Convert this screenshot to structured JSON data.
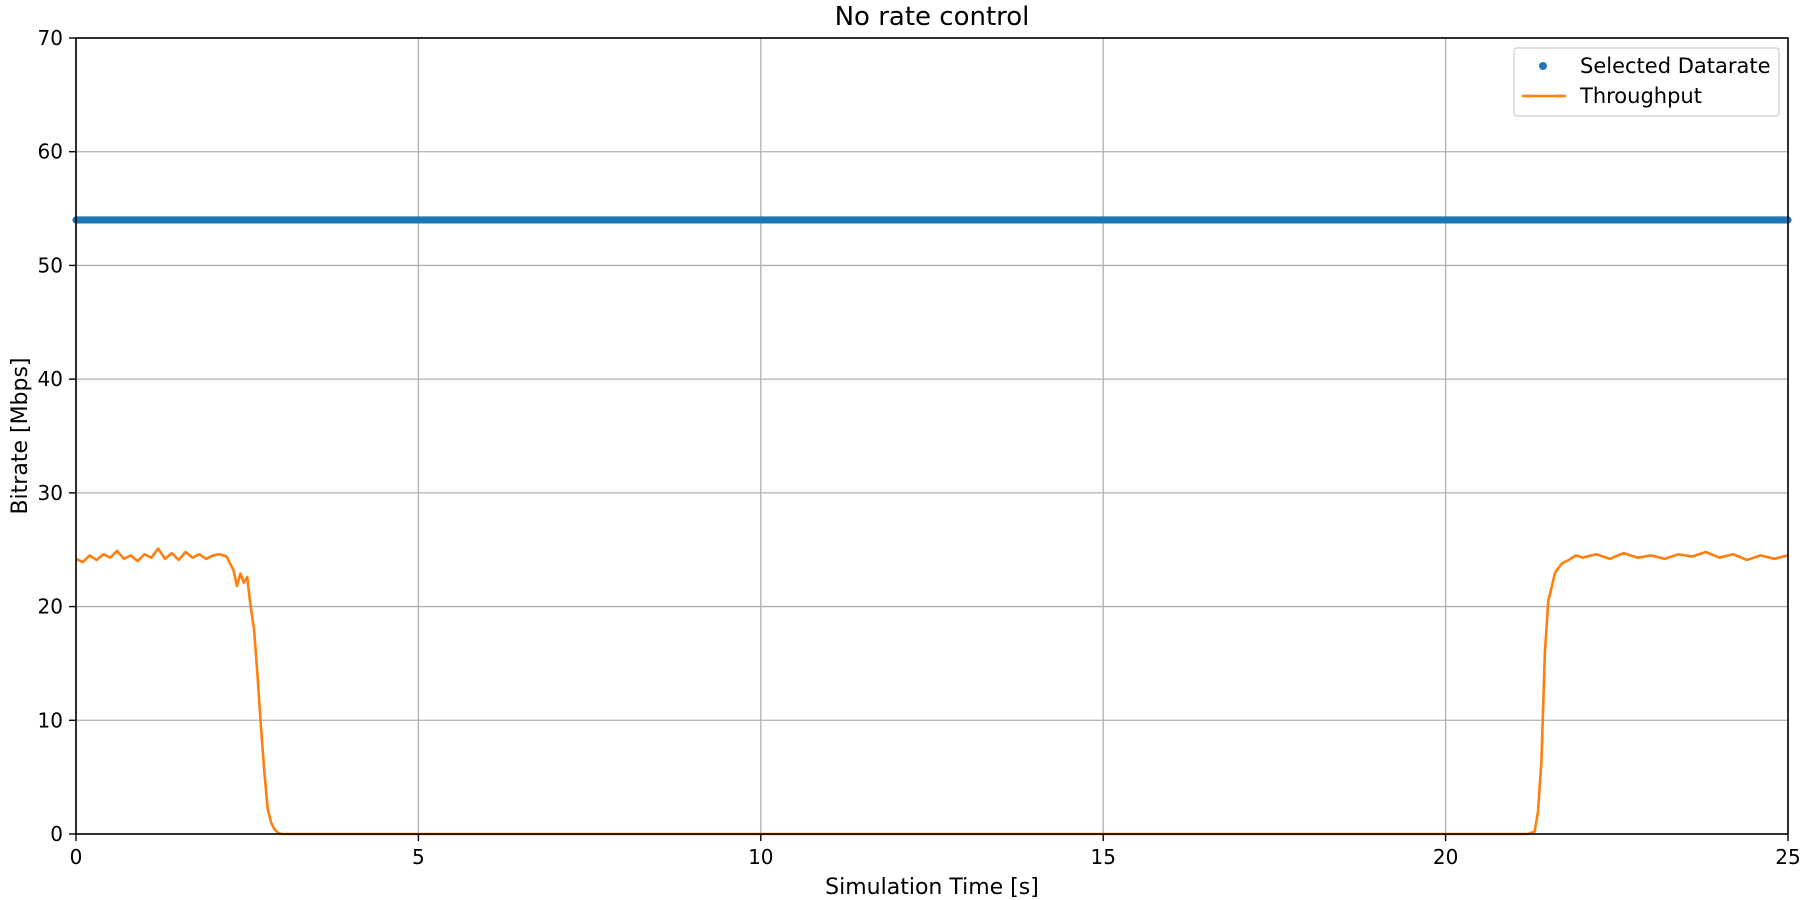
{
  "chart_data": {
    "type": "line",
    "title": "No rate control",
    "xlabel": "Simulation Time [s]",
    "ylabel": "Bitrate [Mbps]",
    "xlim": [
      0,
      25
    ],
    "ylim": [
      0,
      70
    ],
    "x_ticks": [
      0,
      5,
      10,
      15,
      20,
      25
    ],
    "y_ticks": [
      0,
      10,
      20,
      30,
      40,
      50,
      60,
      70
    ],
    "x_tick_labels": [
      "0",
      "5",
      "10",
      "15",
      "20",
      "25"
    ],
    "y_tick_labels": [
      "0",
      "10",
      "20",
      "30",
      "40",
      "50",
      "60",
      "70"
    ],
    "grid": true,
    "legend_position": "top-right",
    "series": [
      {
        "name": "Selected Datarate",
        "style": "markers",
        "color": "#1f77b4",
        "x_range": [
          0,
          25
        ],
        "sample_interval": 0.01,
        "value": 54
      },
      {
        "name": "Throughput",
        "style": "line",
        "color": "#ff7f0e",
        "x": [
          0,
          0.1,
          0.2,
          0.3,
          0.4,
          0.5,
          0.6,
          0.7,
          0.8,
          0.9,
          1.0,
          1.1,
          1.2,
          1.3,
          1.4,
          1.5,
          1.6,
          1.7,
          1.8,
          1.9,
          2.0,
          2.1,
          2.2,
          2.3,
          2.35,
          2.4,
          2.45,
          2.5,
          2.55,
          2.6,
          2.65,
          2.7,
          2.75,
          2.8,
          2.85,
          2.9,
          2.95,
          3.0,
          3.1,
          3.2,
          3.5,
          5,
          10,
          15,
          20,
          21.0,
          21.2,
          21.3,
          21.35,
          21.4,
          21.45,
          21.5,
          21.6,
          21.7,
          21.8,
          21.9,
          22.0,
          22.2,
          22.4,
          22.6,
          22.8,
          23.0,
          23.2,
          23.4,
          23.6,
          23.8,
          24.0,
          24.2,
          24.4,
          24.6,
          24.8,
          25.0
        ],
        "y": [
          24.2,
          23.9,
          24.5,
          24.1,
          24.6,
          24.3,
          24.9,
          24.2,
          24.5,
          24.0,
          24.6,
          24.3,
          25.1,
          24.2,
          24.7,
          24.1,
          24.8,
          24.3,
          24.6,
          24.2,
          24.5,
          24.6,
          24.4,
          23.2,
          21.8,
          22.9,
          22.1,
          22.6,
          20.0,
          18.0,
          14.0,
          9.5,
          5.5,
          2.2,
          1.0,
          0.4,
          0.1,
          0,
          0,
          0,
          0,
          0,
          0,
          0,
          0,
          0,
          0,
          0.2,
          2.0,
          6.5,
          16.0,
          20.5,
          23.0,
          23.8,
          24.1,
          24.5,
          24.3,
          24.6,
          24.2,
          24.7,
          24.3,
          24.5,
          24.2,
          24.6,
          24.4,
          24.8,
          24.3,
          24.6,
          24.1,
          24.5,
          24.2,
          24.5
        ]
      }
    ]
  }
}
